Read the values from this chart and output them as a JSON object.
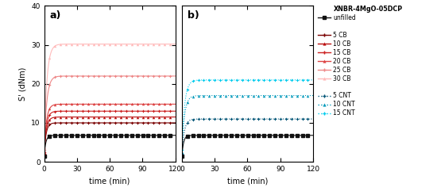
{
  "title": "XNBR-4MgO-05DCP",
  "ylabel": "S' (dNm)",
  "xlabel": "time (min)",
  "ylim": [
    0,
    40
  ],
  "yticks": [
    0,
    10,
    20,
    30,
    40
  ],
  "xticks": [
    0,
    30,
    60,
    90,
    120
  ],
  "unfilled_color": "#111111",
  "cb_colors": [
    "#7a0000",
    "#bb1111",
    "#cc2222",
    "#dd4444",
    "#ee8888",
    "#ffbbbb"
  ],
  "cb_labels": [
    "5 CB",
    "10 CB",
    "15 CB",
    "20 CB",
    "25 CB",
    "30 CB"
  ],
  "cb_plateaus": [
    10.0,
    11.5,
    13.0,
    14.8,
    22.0,
    30.2
  ],
  "cb_rise_rates": [
    0.55,
    0.5,
    0.48,
    0.46,
    0.42,
    0.4
  ],
  "cb_baselines": [
    2.0,
    2.2,
    2.4,
    2.6,
    3.0,
    3.5
  ],
  "cnt_colors": [
    "#005577",
    "#0099bb",
    "#00ccee"
  ],
  "cnt_labels": [
    "5 CNT",
    "10 CNT",
    "15 CNT"
  ],
  "cnt_plateaus": [
    11.0,
    17.0,
    21.0
  ],
  "cnt_rise_rates": [
    0.45,
    0.42,
    0.4
  ],
  "cnt_baselines": [
    2.0,
    2.5,
    3.0
  ],
  "unfilled_plateau": 6.8,
  "unfilled_rise_rate": 0.65,
  "unfilled_baseline": 1.5,
  "background_color": "#ffffff",
  "legend_title": "XNBR-4MgO-05DCP",
  "legend_unfilled": "unfilled"
}
